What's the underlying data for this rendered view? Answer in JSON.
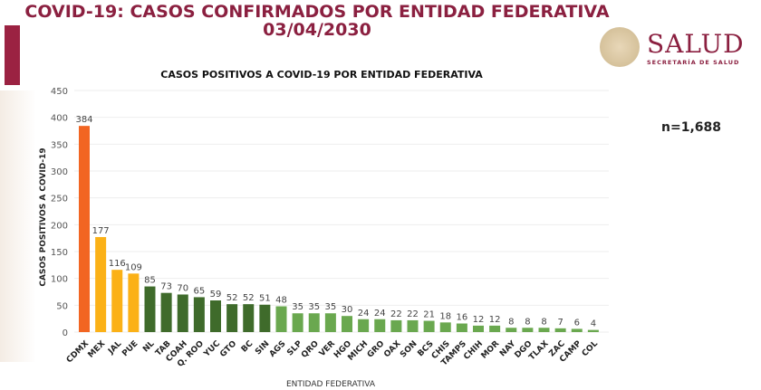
{
  "header": {
    "title": "COVID-19: CASOS CONFIRMADOS POR ENTIDAD FEDERATIVA",
    "date": "03/04/2030"
  },
  "logo": {
    "name": "SALUD",
    "subtitle": "SECRETARÍA DE SALUD"
  },
  "n_label": "n=1,688",
  "chart_data": {
    "type": "bar",
    "title": "CASOS POSITIVOS A COVID-19 POR ENTIDAD FEDERATIVA",
    "xlabel": "ENTIDAD FEDERATIVA",
    "ylabel": "CASOS POSITIVOS A COVID-19",
    "ylim": [
      0,
      450
    ],
    "yticks": [
      0,
      50,
      100,
      150,
      200,
      250,
      300,
      350,
      400,
      450
    ],
    "grid": true,
    "categories": [
      "CDMX",
      "MEX",
      "JAL",
      "PUE",
      "NL",
      "TAB",
      "COAH",
      "Q. ROO",
      "YUC",
      "GTO",
      "BC",
      "SIN",
      "AGS",
      "SLP",
      "QRO",
      "VER",
      "HGO",
      "MICH",
      "GRO",
      "OAX",
      "SON",
      "BCS",
      "CHIS",
      "TAMPS",
      "CHIH",
      "MOR",
      "NAY",
      "DGO",
      "TLAX",
      "ZAC",
      "CAMP",
      "COL"
    ],
    "values": [
      384,
      177,
      116,
      109,
      85,
      73,
      70,
      65,
      59,
      52,
      52,
      51,
      48,
      35,
      35,
      35,
      30,
      24,
      24,
      22,
      22,
      21,
      18,
      16,
      12,
      12,
      8,
      8,
      8,
      7,
      6,
      4
    ],
    "colors": {
      "highest": "#f26522",
      "high": "#fbb117",
      "medium": "#3f6b2b",
      "low": "#6aa84f"
    }
  }
}
